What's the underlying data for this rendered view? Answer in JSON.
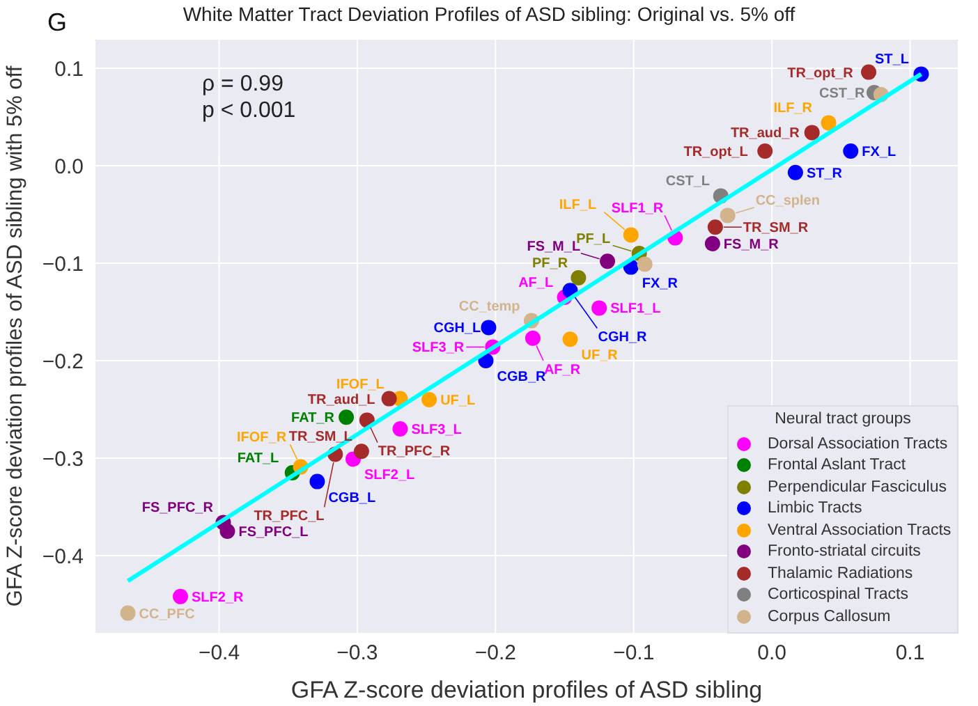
{
  "chart_data": {
    "type": "scatter",
    "title": "White Matter Tract Deviation Profiles of ASD sibling: Original vs. 5% off",
    "xlabel": "GFA Z-score deviation profiles of ASD sibling",
    "ylabel": "GFA Z-score deviation profiles of ASD sibling with 5% off",
    "legend_title": "Neural tract groups",
    "legend": "bottom right",
    "grid": true,
    "marker": "circle",
    "xlim": [
      -0.49,
      0.135
    ],
    "ylim": [
      -0.48,
      0.13
    ],
    "xticks": [
      -0.4,
      -0.3,
      -0.2,
      -0.1,
      {
        "value": 0,
        "label": "0.0"
      },
      0.1
    ],
    "yticks": [
      -0.4,
      -0.3,
      -0.2,
      -0.1,
      {
        "value": 0,
        "label": "0.0"
      },
      0.1
    ],
    "series": [
      {
        "name": "Dorsal Association Tracts",
        "color": "#ff00ff",
        "x": [
          -0.428,
          -0.07,
          -0.15,
          -0.125,
          -0.173,
          -0.202,
          -0.269,
          -0.303
        ],
        "values": [
          -0.442,
          -0.074,
          -0.135,
          -0.146,
          -0.177,
          -0.186,
          -0.27,
          -0.301
        ]
      },
      {
        "name": "Frontal Aslant Tract",
        "color": "#008000",
        "x": [
          -0.308,
          -0.347
        ],
        "values": [
          -0.258,
          -0.315
        ]
      },
      {
        "name": "Perpendicular Fasciculus",
        "color": "#808000",
        "x": [
          -0.096,
          -0.14
        ],
        "values": [
          -0.09,
          -0.115
        ]
      },
      {
        "name": "Limbic Tracts",
        "color": "#0000ff",
        "x": [
          0.108,
          0.057,
          0.017,
          -0.102,
          -0.146,
          -0.205,
          -0.207,
          -0.329
        ],
        "values": [
          0.094,
          0.015,
          -0.007,
          -0.104,
          -0.128,
          -0.166,
          -0.2,
          -0.324
        ]
      },
      {
        "name": "Ventral Association Tracts",
        "color": "#ffa500",
        "x": [
          0.041,
          -0.102,
          -0.146,
          -0.269,
          -0.248,
          -0.341
        ],
        "values": [
          0.044,
          -0.071,
          -0.178,
          -0.239,
          -0.24,
          -0.309
        ]
      },
      {
        "name": "Fronto-striatal circuits",
        "color": "#800080",
        "x": [
          -0.043,
          -0.119,
          -0.397,
          -0.394
        ],
        "values": [
          -0.08,
          -0.098,
          -0.366,
          -0.375
        ]
      },
      {
        "name": "Thalamic Radiations",
        "color": "#a52a2a",
        "x": [
          0.07,
          0.029,
          -0.005,
          -0.041,
          -0.277,
          -0.293,
          -0.297,
          -0.316
        ],
        "values": [
          0.096,
          0.034,
          0.015,
          -0.063,
          -0.239,
          -0.261,
          -0.293,
          -0.296
        ]
      },
      {
        "name": "Corticospinal Tracts",
        "color": "#808080",
        "x": [
          0.074,
          -0.037
        ],
        "values": [
          0.075,
          -0.031
        ]
      },
      {
        "name": "Corpus Callosum",
        "color": "#d2b48c",
        "x": [
          0.079,
          -0.032,
          -0.092,
          -0.174,
          -0.466
        ],
        "values": [
          0.073,
          -0.051,
          -0.101,
          -0.159,
          -0.459
        ]
      },
      {
        "type": "line",
        "marker": "none",
        "color": "#00ffff",
        "x": [
          -0.466,
          0.108
        ],
        "values": [
          -0.426,
          0.094
        ]
      }
    ],
    "annotations": [
      "G",
      "ρ = 0.99",
      "p < 0.001",
      {
        "text": "SLF2_R",
        "x": -0.428,
        "y": -0.442
      },
      {
        "text": "SLF1_R",
        "x": -0.07,
        "y": -0.074
      },
      {
        "text": "AF_L",
        "x": -0.15,
        "y": -0.135
      },
      {
        "text": "SLF1_L",
        "x": -0.125,
        "y": -0.146
      },
      {
        "text": "AF_R",
        "x": -0.173,
        "y": -0.177
      },
      {
        "text": "SLF3_R",
        "x": -0.202,
        "y": -0.186
      },
      {
        "text": "SLF3_L",
        "x": -0.269,
        "y": -0.27
      },
      {
        "text": "SLF2_L",
        "x": -0.303,
        "y": -0.301
      },
      {
        "text": "FAT_R",
        "x": -0.308,
        "y": -0.258
      },
      {
        "text": "FAT_L",
        "x": -0.347,
        "y": -0.315
      },
      {
        "text": "PF_L",
        "x": -0.096,
        "y": -0.09
      },
      {
        "text": "PF_R",
        "x": -0.14,
        "y": -0.115
      },
      {
        "text": "ST_L",
        "x": 0.108,
        "y": 0.094
      },
      {
        "text": "FX_L",
        "x": 0.057,
        "y": 0.015
      },
      {
        "text": "ST_R",
        "x": 0.017,
        "y": -0.007
      },
      {
        "text": "FX_R",
        "x": -0.102,
        "y": -0.104
      },
      {
        "text": "CGH_R",
        "x": -0.146,
        "y": -0.128
      },
      {
        "text": "CGH_L",
        "x": -0.205,
        "y": -0.166
      },
      {
        "text": "CGB_R",
        "x": -0.207,
        "y": -0.2
      },
      {
        "text": "CGB_L",
        "x": -0.329,
        "y": -0.324
      },
      {
        "text": "ILF_R",
        "x": 0.041,
        "y": 0.044
      },
      {
        "text": "ILF_L",
        "x": -0.102,
        "y": -0.071
      },
      {
        "text": "UF_R",
        "x": -0.146,
        "y": -0.178
      },
      {
        "text": "IFOF_L",
        "x": -0.269,
        "y": -0.239
      },
      {
        "text": "UF_L",
        "x": -0.248,
        "y": -0.24
      },
      {
        "text": "IFOF_R",
        "x": -0.341,
        "y": -0.309
      },
      {
        "text": "FS_M_R",
        "x": -0.043,
        "y": -0.08
      },
      {
        "text": "FS_M_L",
        "x": -0.119,
        "y": -0.098
      },
      {
        "text": "FS_PFC_R",
        "x": -0.397,
        "y": -0.366
      },
      {
        "text": "FS_PFC_L",
        "x": -0.394,
        "y": -0.375
      },
      {
        "text": "TR_opt_R",
        "x": 0.07,
        "y": 0.096
      },
      {
        "text": "TR_aud_R",
        "x": 0.029,
        "y": 0.034
      },
      {
        "text": "TR_opt_L",
        "x": -0.005,
        "y": 0.015
      },
      {
        "text": "TR_SM_R",
        "x": -0.041,
        "y": -0.063
      },
      {
        "text": "TR_aud_L",
        "x": -0.277,
        "y": -0.239
      },
      {
        "text": "TR_PFC_R",
        "x": -0.293,
        "y": -0.261
      },
      {
        "text": "TR_SM_L",
        "x": -0.297,
        "y": -0.293
      },
      {
        "text": "TR_PFC_L",
        "x": -0.316,
        "y": -0.296
      },
      {
        "text": "CST_R",
        "x": 0.074,
        "y": 0.075
      },
      {
        "text": "CST_L",
        "x": -0.037,
        "y": -0.031
      },
      {
        "text": "CC_splen",
        "x": -0.032,
        "y": -0.051
      },
      {
        "text": "CC_temp",
        "x": -0.174,
        "y": -0.159
      },
      {
        "text": "CC_PFC",
        "x": -0.466,
        "y": -0.459
      }
    ]
  }
}
